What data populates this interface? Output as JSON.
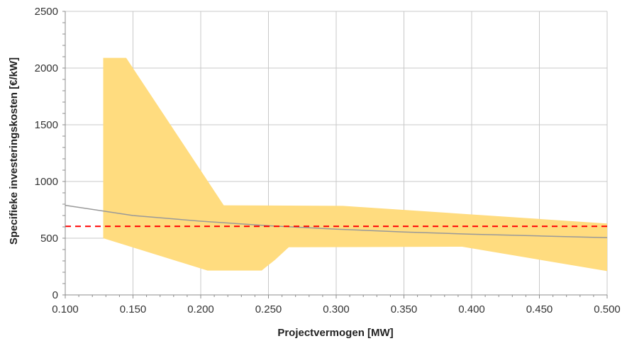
{
  "chart_data": {
    "type": "area",
    "title": "",
    "xlabel": "Projectvermogen [MW]",
    "ylabel": "Specifieke investeringskosten [€/kW]",
    "xlim": [
      0.1,
      0.5
    ],
    "ylim": [
      0,
      2500
    ],
    "x_ticks": [
      "0.100",
      "0.150",
      "0.200",
      "0.250",
      "0.300",
      "0.350",
      "0.400",
      "0.450",
      "0.500"
    ],
    "y_ticks": [
      "0",
      "500",
      "1000",
      "1500",
      "2000",
      "2500"
    ],
    "grid": true,
    "band": {
      "color": "#FFDC7F",
      "upper": [
        [
          0.128,
          2090
        ],
        [
          0.145,
          2090
        ],
        [
          0.217,
          790
        ],
        [
          0.305,
          785
        ],
        [
          0.5,
          630
        ]
      ],
      "lower": [
        [
          0.5,
          210
        ],
        [
          0.393,
          425
        ],
        [
          0.265,
          420
        ],
        [
          0.255,
          310
        ],
        [
          0.245,
          215
        ],
        [
          0.205,
          215
        ],
        [
          0.128,
          500
        ]
      ]
    },
    "trend_line": {
      "color": "#999999",
      "x": [
        0.1,
        0.15,
        0.2,
        0.25,
        0.3,
        0.35,
        0.4,
        0.45,
        0.5
      ],
      "y": [
        790,
        700,
        650,
        610,
        580,
        555,
        535,
        520,
        505
      ]
    },
    "reference_line": {
      "color": "#FF0000",
      "style": "dashed",
      "value": 605
    }
  }
}
